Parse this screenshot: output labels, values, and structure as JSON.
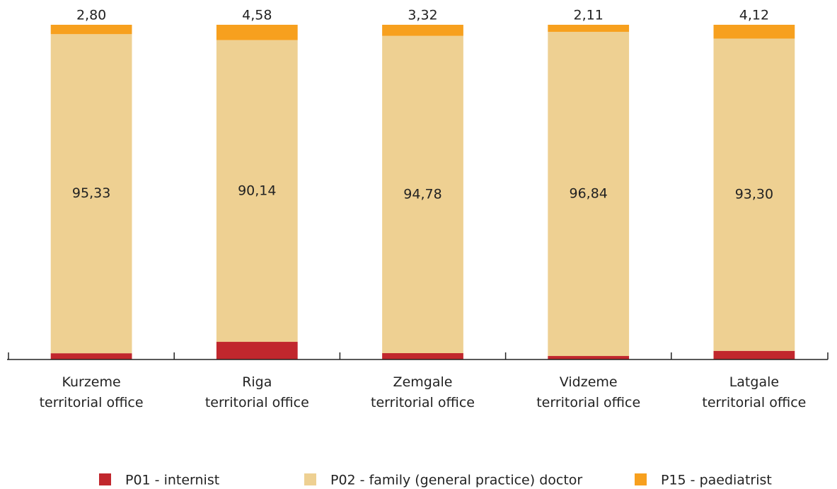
{
  "chart_data": {
    "type": "stacked_bar",
    "categories": [
      "Kurzeme\nterritorial office",
      "Riga\nterritorial office",
      "Zemgale\nterritorial office",
      "Vidzeme\nterritorial office",
      "Latgale\nterritorial office"
    ],
    "series": [
      {
        "name": "P01 - internist",
        "color": "#c1272d",
        "values": [
          1.87,
          5.28,
          1.9,
          1.05,
          2.58
        ],
        "value_labels": [
          "1,87",
          "5,28",
          "1,90",
          "1,05",
          "2,58"
        ]
      },
      {
        "name": "P02 - family (general practice) doctor",
        "color": "#eed092",
        "values": [
          95.33,
          90.14,
          94.78,
          96.84,
          93.3
        ],
        "value_labels": [
          "95,33",
          "90,14",
          "94,78",
          "96,84",
          "93,30"
        ]
      },
      {
        "name": "P15 - paediatrist",
        "color": "#f7a01e",
        "values": [
          2.8,
          4.58,
          3.32,
          2.11,
          4.12
        ],
        "value_labels": [
          "2,80",
          "4,58",
          "3,32",
          "2,11",
          "4,12"
        ]
      }
    ],
    "ylim": [
      0,
      100
    ],
    "legend": "bottom"
  }
}
